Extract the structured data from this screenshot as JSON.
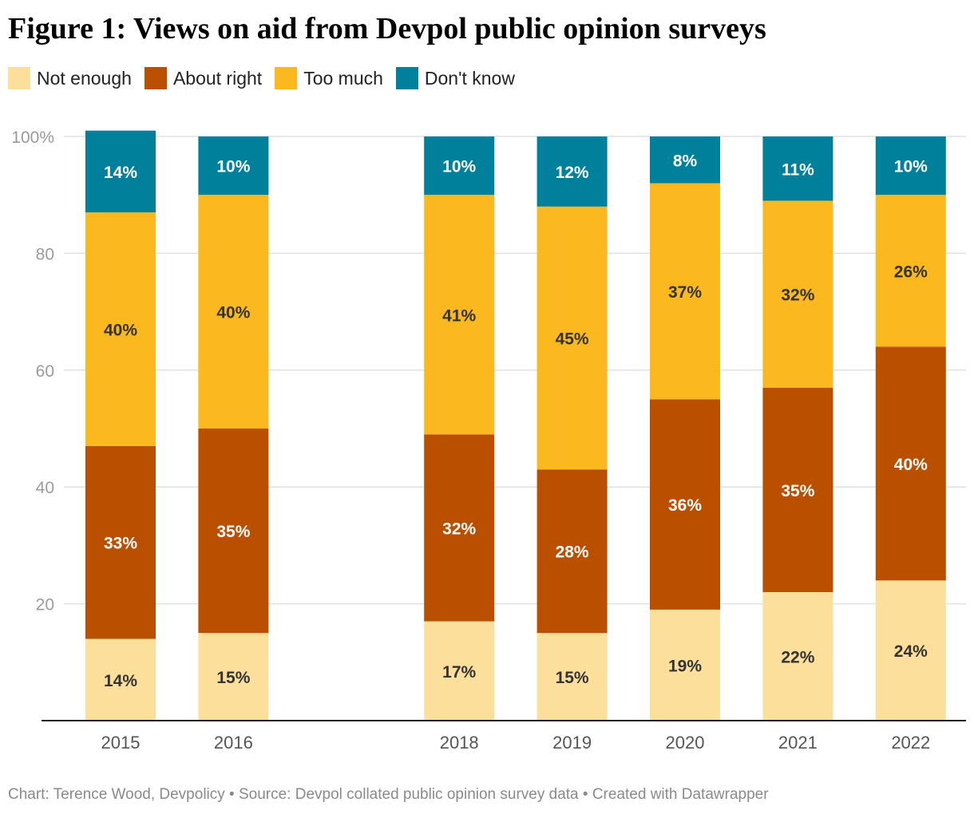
{
  "title": "Figure 1: Views on aid from Devpol public opinion surveys",
  "colors": {
    "not_enough": "#fddf9c",
    "about_right": "#bb4f00",
    "too_much": "#fbb81f",
    "dont_know": "#00809a",
    "grid": "#e1e1e1",
    "axis_text": "#9a9a9a",
    "baseline": "#222222"
  },
  "chart_data": {
    "type": "bar",
    "stacked": true,
    "categories": [
      "2015",
      "2016",
      "2018",
      "2019",
      "2020",
      "2021",
      "2022"
    ],
    "category_gap_after": "2016",
    "series": [
      {
        "name": "Not enough",
        "values": [
          14,
          15,
          17,
          15,
          19,
          22,
          24
        ],
        "labels": [
          "14%",
          "15%",
          "17%",
          "15%",
          "19%",
          "22%",
          "24%"
        ]
      },
      {
        "name": "About right",
        "values": [
          33,
          35,
          32,
          28,
          36,
          35,
          40
        ],
        "labels": [
          "33%",
          "35%",
          "32%",
          "28%",
          "36%",
          "35%",
          "40%"
        ]
      },
      {
        "name": "Too much",
        "values": [
          40,
          40,
          41,
          45,
          37,
          32,
          26
        ],
        "labels": [
          "40%",
          "40%",
          "41%",
          "45%",
          "37%",
          "32%",
          "26%"
        ]
      },
      {
        "name": "Don't know",
        "values": [
          14,
          10,
          10,
          12,
          8,
          11,
          10
        ],
        "labels": [
          "14%",
          "10%",
          "10%",
          "12%",
          "8%",
          "11%",
          "10%"
        ]
      }
    ],
    "yticks": [
      20,
      40,
      60,
      80,
      100
    ],
    "ytick_labels": [
      "20",
      "40",
      "60",
      "80",
      "100%"
    ],
    "ylim": [
      0,
      100
    ],
    "grid": true,
    "legend_position": "top-left"
  },
  "footer": "Chart: Terence Wood, Devpolicy • Source: Devpol collated public opinion survey data • Created with Datawrapper"
}
